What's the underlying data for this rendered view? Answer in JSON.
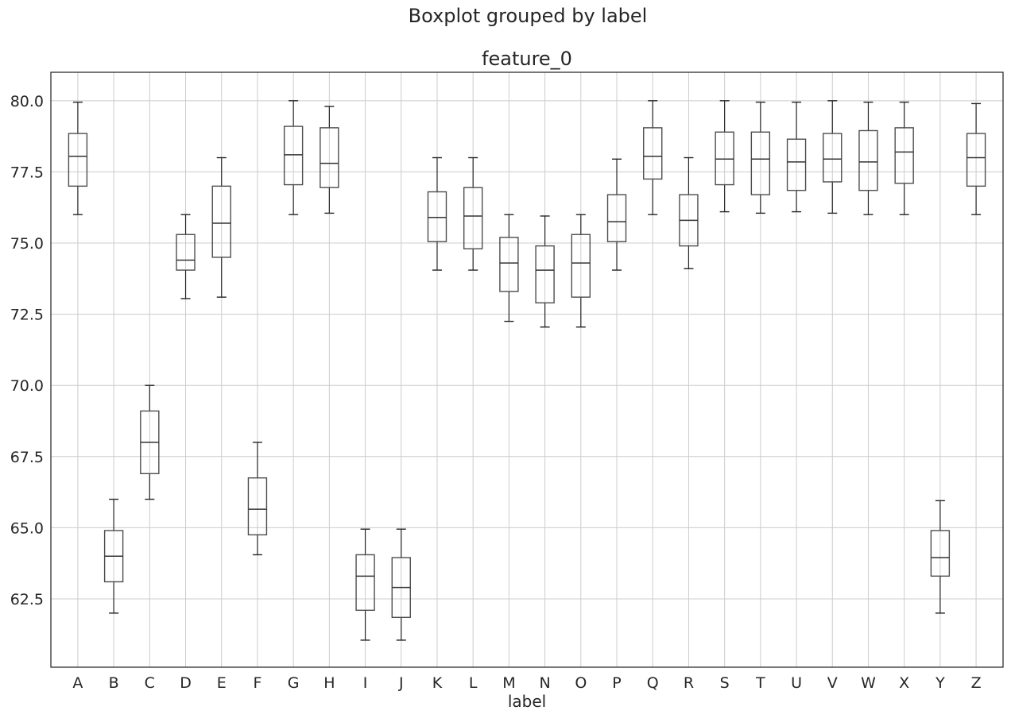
{
  "chart_data": {
    "type": "boxplot",
    "suptitle": "Boxplot grouped by label",
    "title": "feature_0",
    "xlabel": "label",
    "ylabel": "",
    "ylim": [
      60.1,
      81.0
    ],
    "yticks": [
      "62.5",
      "65.0",
      "67.5",
      "70.0",
      "72.5",
      "75.0",
      "77.5",
      "80.0"
    ],
    "grid": true,
    "categories": [
      "A",
      "B",
      "C",
      "D",
      "E",
      "F",
      "G",
      "H",
      "I",
      "J",
      "K",
      "L",
      "M",
      "N",
      "O",
      "P",
      "Q",
      "R",
      "S",
      "T",
      "U",
      "V",
      "W",
      "X",
      "Y",
      "Z"
    ],
    "boxes": [
      {
        "label": "A",
        "whislo": 76.0,
        "q1": 77.0,
        "med": 78.05,
        "q3": 78.85,
        "whishi": 79.95
      },
      {
        "label": "B",
        "whislo": 62.0,
        "q1": 63.1,
        "med": 64.0,
        "q3": 64.9,
        "whishi": 66.0
      },
      {
        "label": "C",
        "whislo": 66.0,
        "q1": 66.9,
        "med": 68.0,
        "q3": 69.1,
        "whishi": 70.0
      },
      {
        "label": "D",
        "whislo": 73.05,
        "q1": 74.05,
        "med": 74.4,
        "q3": 75.3,
        "whishi": 76.0
      },
      {
        "label": "E",
        "whislo": 73.1,
        "q1": 74.5,
        "med": 75.7,
        "q3": 77.0,
        "whishi": 78.0
      },
      {
        "label": "F",
        "whislo": 64.05,
        "q1": 64.75,
        "med": 65.65,
        "q3": 66.75,
        "whishi": 68.0
      },
      {
        "label": "G",
        "whislo": 76.0,
        "q1": 77.05,
        "med": 78.1,
        "q3": 79.1,
        "whishi": 80.0
      },
      {
        "label": "H",
        "whislo": 76.05,
        "q1": 76.95,
        "med": 77.8,
        "q3": 79.05,
        "whishi": 79.8
      },
      {
        "label": "I",
        "whislo": 61.05,
        "q1": 62.1,
        "med": 63.3,
        "q3": 64.05,
        "whishi": 64.95
      },
      {
        "label": "J",
        "whislo": 61.05,
        "q1": 61.85,
        "med": 62.9,
        "q3": 63.95,
        "whishi": 64.95
      },
      {
        "label": "K",
        "whislo": 74.05,
        "q1": 75.05,
        "med": 75.9,
        "q3": 76.8,
        "whishi": 78.0
      },
      {
        "label": "L",
        "whislo": 74.05,
        "q1": 74.8,
        "med": 75.95,
        "q3": 76.95,
        "whishi": 78.0
      },
      {
        "label": "M",
        "whislo": 72.25,
        "q1": 73.3,
        "med": 74.3,
        "q3": 75.2,
        "whishi": 76.0
      },
      {
        "label": "N",
        "whislo": 72.05,
        "q1": 72.9,
        "med": 74.05,
        "q3": 74.9,
        "whishi": 75.95
      },
      {
        "label": "O",
        "whislo": 72.05,
        "q1": 73.1,
        "med": 74.3,
        "q3": 75.3,
        "whishi": 76.0
      },
      {
        "label": "P",
        "whislo": 74.05,
        "q1": 75.05,
        "med": 75.75,
        "q3": 76.7,
        "whishi": 77.95
      },
      {
        "label": "Q",
        "whislo": 76.0,
        "q1": 77.25,
        "med": 78.05,
        "q3": 79.05,
        "whishi": 80.0
      },
      {
        "label": "R",
        "whislo": 74.1,
        "q1": 74.9,
        "med": 75.8,
        "q3": 76.7,
        "whishi": 78.0
      },
      {
        "label": "S",
        "whislo": 76.1,
        "q1": 77.05,
        "med": 77.95,
        "q3": 78.9,
        "whishi": 80.0
      },
      {
        "label": "T",
        "whislo": 76.05,
        "q1": 76.7,
        "med": 77.95,
        "q3": 78.9,
        "whishi": 79.95
      },
      {
        "label": "U",
        "whislo": 76.1,
        "q1": 76.85,
        "med": 77.85,
        "q3": 78.65,
        "whishi": 79.95
      },
      {
        "label": "V",
        "whislo": 76.05,
        "q1": 77.15,
        "med": 77.95,
        "q3": 78.85,
        "whishi": 80.0
      },
      {
        "label": "W",
        "whislo": 76.0,
        "q1": 76.85,
        "med": 77.85,
        "q3": 78.95,
        "whishi": 79.95
      },
      {
        "label": "X",
        "whislo": 76.0,
        "q1": 77.1,
        "med": 78.2,
        "q3": 79.05,
        "whishi": 79.95
      },
      {
        "label": "Y",
        "whislo": 62.0,
        "q1": 63.3,
        "med": 63.95,
        "q3": 64.9,
        "whishi": 65.95
      },
      {
        "label": "Z",
        "whislo": 76.0,
        "q1": 77.0,
        "med": 78.0,
        "q3": 78.85,
        "whishi": 79.9
      }
    ]
  }
}
